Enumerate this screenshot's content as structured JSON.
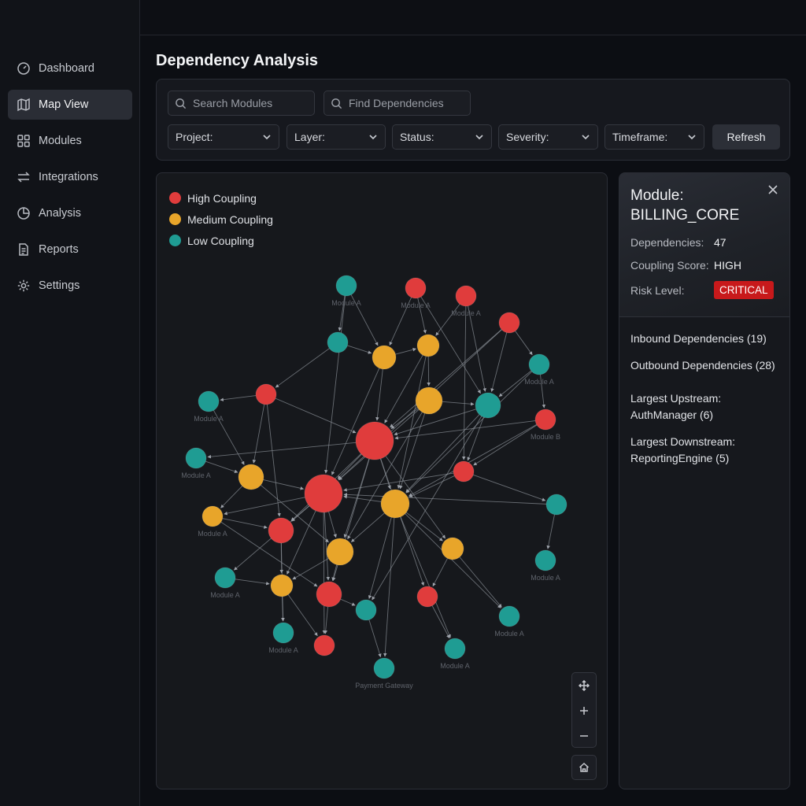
{
  "sidebar": {
    "items": [
      {
        "label": "Dashboard",
        "icon": "dashboard-icon",
        "active": false
      },
      {
        "label": "Map View",
        "icon": "map-icon",
        "active": true
      },
      {
        "label": "Modules",
        "icon": "grid-icon",
        "active": false
      },
      {
        "label": "Integrations",
        "icon": "arrows-icon",
        "active": false
      },
      {
        "label": "Analysis",
        "icon": "pie-icon",
        "active": false
      },
      {
        "label": "Reports",
        "icon": "document-icon",
        "active": false
      },
      {
        "label": "Settings",
        "icon": "gear-icon",
        "active": false
      }
    ]
  },
  "page": {
    "title": "Dependency Analysis"
  },
  "filters": {
    "search_modules_placeholder": "Search Modules",
    "find_dependencies_placeholder": "Find Dependencies",
    "selects": [
      "Project:",
      "Layer:",
      "Status:",
      "Severity:",
      "Timeframe:"
    ],
    "refresh_label": "Refresh"
  },
  "legend": [
    {
      "label": "High Coupling",
      "color": "#e03c3c"
    },
    {
      "label": "Medium Coupling",
      "color": "#e8a52a"
    },
    {
      "label": "Low Coupling",
      "color": "#1f9c93"
    }
  ],
  "graph": {
    "colors": {
      "high": "#e03c3c",
      "medium": "#e8a52a",
      "low": "#1f9c93"
    },
    "nodes": [
      {
        "t": "low",
        "label": "Module A"
      },
      {
        "t": "high",
        "label": "Module A"
      },
      {
        "t": "high",
        "label": "Module A"
      },
      {
        "t": "high",
        "label": ""
      },
      {
        "t": "low",
        "label": ""
      },
      {
        "t": "medium",
        "label": ""
      },
      {
        "t": "medium",
        "label": ""
      },
      {
        "t": "low",
        "label": "Module A"
      },
      {
        "t": "low",
        "label": "Module A"
      },
      {
        "t": "high",
        "label": ""
      },
      {
        "t": "medium",
        "label": ""
      },
      {
        "t": "low",
        "label": ""
      },
      {
        "t": "high",
        "label": "Module B"
      },
      {
        "t": "high",
        "label": ""
      },
      {
        "t": "low",
        "label": "Module A"
      },
      {
        "t": "medium",
        "label": ""
      },
      {
        "t": "high",
        "label": ""
      },
      {
        "t": "high",
        "label": ""
      },
      {
        "t": "low",
        "label": ""
      },
      {
        "t": "medium",
        "label": "Module A"
      },
      {
        "t": "high",
        "label": ""
      },
      {
        "t": "medium",
        "label": ""
      },
      {
        "t": "medium",
        "label": ""
      },
      {
        "t": "medium",
        "label": ""
      },
      {
        "t": "low",
        "label": "Module A"
      },
      {
        "t": "low",
        "label": "Module A"
      },
      {
        "t": "medium",
        "label": ""
      },
      {
        "t": "high",
        "label": ""
      },
      {
        "t": "low",
        "label": ""
      },
      {
        "t": "high",
        "label": ""
      },
      {
        "t": "low",
        "label": "Module A"
      },
      {
        "t": "high",
        "label": ""
      },
      {
        "t": "low",
        "label": "Module A"
      },
      {
        "t": "low",
        "label": "Module A"
      },
      {
        "t": "low",
        "label": "Payment Gateway"
      }
    ]
  },
  "details": {
    "title": "Module: BILLING_CORE",
    "dependencies_label": "Dependencies:",
    "dependencies_value": "47",
    "coupling_label": "Coupling Score:",
    "coupling_value": "HIGH",
    "risk_label": "Risk Level:",
    "risk_value": "CRITICAL",
    "inbound": "Inbound Dependencies (19)",
    "outbound": "Outbound Dependencies (28)",
    "upstream_label": "Largest Upstream:",
    "upstream_value": "AuthManager (6)",
    "downstream_label": "Largest Downstream:",
    "downstream_value": "ReportingEngine (5)"
  }
}
